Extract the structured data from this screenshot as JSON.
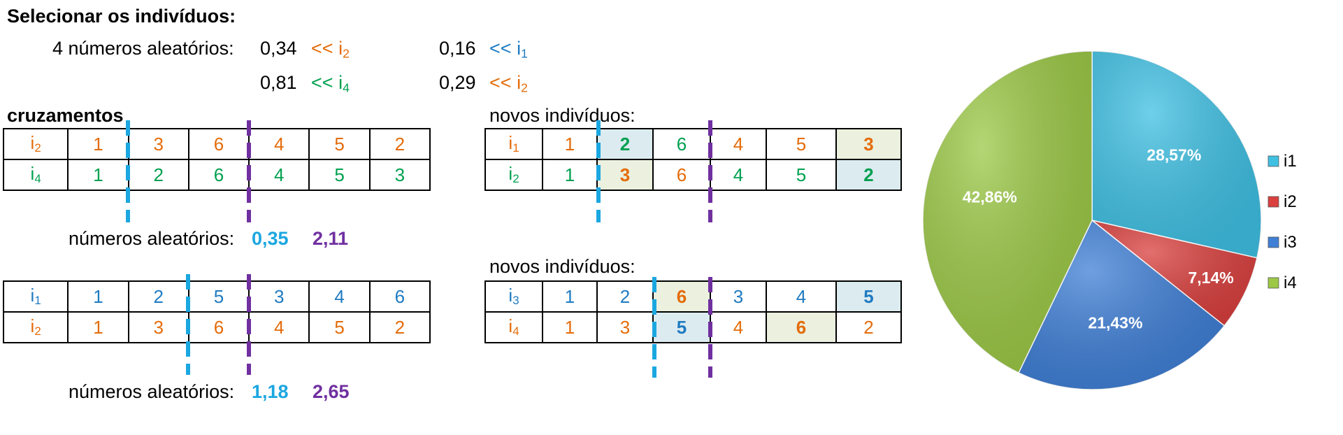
{
  "heading": "Selecionar os indivíduos:",
  "selection": {
    "label": "4 números aleatórios:",
    "pairs": [
      {
        "value": "0,34",
        "arrow": "<<",
        "ind": "i",
        "sub": "2"
      },
      {
        "value": "0,16",
        "arrow": "<<",
        "ind": "i",
        "sub": "1"
      },
      {
        "value": "0,81",
        "arrow": "<<",
        "ind": "i",
        "sub": "4"
      },
      {
        "value": "0,29",
        "arrow": "<<",
        "ind": "i",
        "sub": "2"
      }
    ]
  },
  "crossings_title": "cruzamentos",
  "new_individuals_label": "novos indivíduos:",
  "random_label": "números aleatórios:",
  "cross1": {
    "random": [
      "0,35",
      "2,11"
    ],
    "parents": [
      {
        "ind": "i",
        "sub": "2",
        "genes": [
          "1",
          "3",
          "6",
          "4",
          "5",
          "2"
        ]
      },
      {
        "ind": "i",
        "sub": "4",
        "genes": [
          "1",
          "2",
          "6",
          "4",
          "5",
          "3"
        ]
      }
    ],
    "children": [
      {
        "ind": "i",
        "sub": "1",
        "genes": [
          "1",
          "2",
          "6",
          "4",
          "5",
          "3"
        ]
      },
      {
        "ind": "i",
        "sub": "2",
        "genes": [
          "1",
          "3",
          "6",
          "4",
          "5",
          "2"
        ]
      }
    ]
  },
  "cross2": {
    "random": [
      "1,18",
      "2,65"
    ],
    "parents": [
      {
        "ind": "i",
        "sub": "1",
        "genes": [
          "1",
          "2",
          "5",
          "3",
          "4",
          "6"
        ]
      },
      {
        "ind": "i",
        "sub": "2",
        "genes": [
          "1",
          "3",
          "6",
          "4",
          "5",
          "2"
        ]
      }
    ],
    "children": [
      {
        "ind": "i",
        "sub": "3",
        "genes": [
          "1",
          "2",
          "6",
          "3",
          "4",
          "5"
        ]
      },
      {
        "ind": "i",
        "sub": "4",
        "genes": [
          "1",
          "3",
          "5",
          "4",
          "6",
          "2"
        ]
      }
    ]
  },
  "colors": {
    "orange": "#E46C0A",
    "green": "#00A050",
    "blue": "#1F7BC1",
    "cyan_cut": "#1BA7E0",
    "purple_cut": "#7030A0"
  },
  "chart_data": {
    "type": "pie",
    "title": "",
    "slices": [
      {
        "name": "i1",
        "value": 28.57,
        "label": "28,57%",
        "color": "#3FC0E3"
      },
      {
        "name": "i2",
        "value": 7.14,
        "label": "7,14%",
        "color": "#D9403E"
      },
      {
        "name": "i3",
        "value": 21.43,
        "label": "21,43%",
        "color": "#3F7FD6"
      },
      {
        "name": "i4",
        "value": 42.86,
        "label": "42,86%",
        "color": "#9CC846"
      }
    ],
    "legend": "right"
  }
}
